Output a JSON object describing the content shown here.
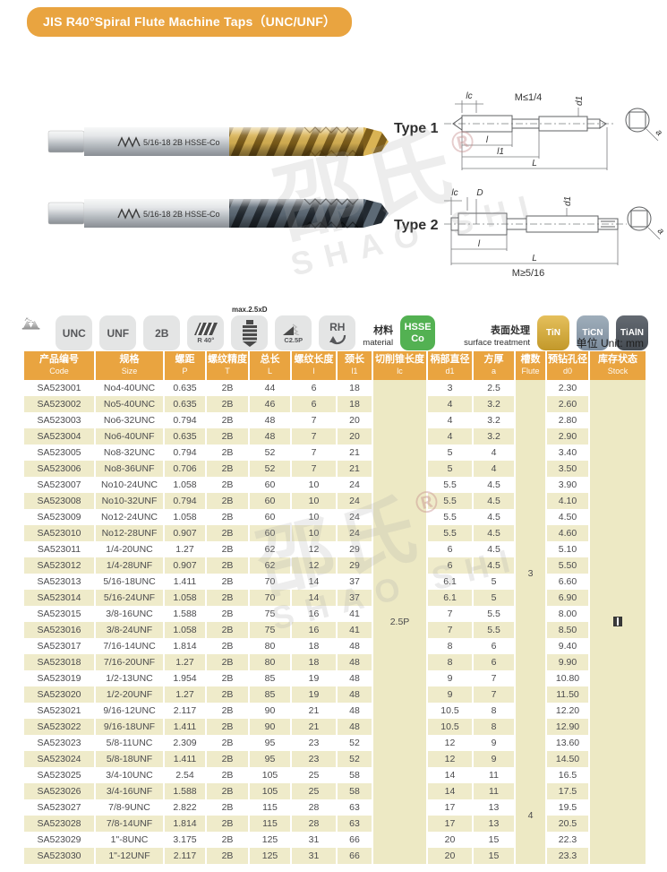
{
  "page": {
    "title": "JIS  R40°Spiral Flute Machine Taps（UNC/UNF）",
    "unit_label": "单位 Unit: mm",
    "watermark_cn": "邵氏",
    "watermark_reg": "®",
    "watermark_en": "SHAO SHI",
    "colors": {
      "accent_orange": "#E9A440",
      "row_beige": "#EFEBCA",
      "material_green": "#53B152",
      "tin_gold": "#D5A733",
      "ticn_gray": "#8D9DAC",
      "tialn_dark": "#575C63"
    }
  },
  "photos": {
    "tap_gold_marking": "5/16-18 2B HSSE-Co",
    "tap_dark_marking": "5/16-18 2B HSSE-Co",
    "brand_mark": "邵氏"
  },
  "diagrams": {
    "type1": {
      "label": "Type 1",
      "note": "M≤1/4",
      "dim_lc": "lc",
      "dim_d1": "d1",
      "dim_l": "l",
      "dim_l1": "l1",
      "dim_L": "L",
      "dim_a": "a"
    },
    "type2": {
      "label": "Type 2",
      "note": "M≥5/16",
      "dim_lc": "lc",
      "dim_D": "D",
      "dim_d1": "d1",
      "dim_l": "l",
      "dim_L": "L",
      "dim_a": "a"
    }
  },
  "spec_icons": {
    "thread_angle": "60°",
    "thread_pitch": "P",
    "badge_unc": "UNC",
    "badge_unf": "UNF",
    "badge_2b": "2B",
    "badge_spiral": "R 40°",
    "depth_note": "max.2.5xD",
    "badge_chamfer": "C2.5P",
    "badge_rotation": "RH",
    "material_label_cn": "材料",
    "material_label_en": "material",
    "material_badge_line1": "HSSE",
    "material_badge_line2": "Co",
    "surface_label_cn": "表面处理",
    "surface_label_en": "surface treatment",
    "coating_tin": "TiN",
    "coating_ticn": "TiCN",
    "coating_tialn": "TiAlN"
  },
  "table": {
    "columns": [
      {
        "cn": "产品编号",
        "en": "Code"
      },
      {
        "cn": "规格",
        "en": "Size"
      },
      {
        "cn": "螺距",
        "en": "P"
      },
      {
        "cn": "螺纹精度",
        "en": "T"
      },
      {
        "cn": "总长",
        "en": "L"
      },
      {
        "cn": "螺纹长度",
        "en": "l"
      },
      {
        "cn": "颈长",
        "en": "l1"
      },
      {
        "cn": "切削锥长度",
        "en": "lc"
      },
      {
        "cn": "柄部直径",
        "en": "d1"
      },
      {
        "cn": "方厚",
        "en": "a"
      },
      {
        "cn": "槽数",
        "en": "Flute"
      },
      {
        "cn": "预钻孔径",
        "en": "d0"
      },
      {
        "cn": "库存状态",
        "en": "Stock"
      }
    ],
    "merged": {
      "lc_value": "2.5P",
      "flute_groups": [
        {
          "value": "3",
          "span": 24
        },
        {
          "value": "4",
          "span": 6
        }
      ]
    },
    "rows": [
      [
        "SA523001",
        "No4-40UNC",
        "0.635",
        "2B",
        "44",
        "6",
        "18",
        "3",
        "2.5",
        "2.30"
      ],
      [
        "SA523002",
        "No5-40UNC",
        "0.635",
        "2B",
        "46",
        "6",
        "18",
        "4",
        "3.2",
        "2.60"
      ],
      [
        "SA523003",
        "No6-32UNC",
        "0.794",
        "2B",
        "48",
        "7",
        "20",
        "4",
        "3.2",
        "2.80"
      ],
      [
        "SA523004",
        "No6-40UNF",
        "0.635",
        "2B",
        "48",
        "7",
        "20",
        "4",
        "3.2",
        "2.90"
      ],
      [
        "SA523005",
        "No8-32UNC",
        "0.794",
        "2B",
        "52",
        "7",
        "21",
        "5",
        "4",
        "3.40"
      ],
      [
        "SA523006",
        "No8-36UNF",
        "0.706",
        "2B",
        "52",
        "7",
        "21",
        "5",
        "4",
        "3.50"
      ],
      [
        "SA523007",
        "No10-24UNC",
        "1.058",
        "2B",
        "60",
        "10",
        "24",
        "5.5",
        "4.5",
        "3.90"
      ],
      [
        "SA523008",
        "No10-32UNF",
        "0.794",
        "2B",
        "60",
        "10",
        "24",
        "5.5",
        "4.5",
        "4.10"
      ],
      [
        "SA523009",
        "No12-24UNC",
        "1.058",
        "2B",
        "60",
        "10",
        "24",
        "5.5",
        "4.5",
        "4.50"
      ],
      [
        "SA523010",
        "No12-28UNF",
        "0.907",
        "2B",
        "60",
        "10",
        "24",
        "5.5",
        "4.5",
        "4.60"
      ],
      [
        "SA523011",
        "1/4-20UNC",
        "1.27",
        "2B",
        "62",
        "12",
        "29",
        "6",
        "4.5",
        "5.10"
      ],
      [
        "SA523012",
        "1/4-28UNF",
        "0.907",
        "2B",
        "62",
        "12",
        "29",
        "6",
        "4.5",
        "5.50"
      ],
      [
        "SA523013",
        "5/16-18UNC",
        "1.411",
        "2B",
        "70",
        "14",
        "37",
        "6.1",
        "5",
        "6.60"
      ],
      [
        "SA523014",
        "5/16-24UNF",
        "1.058",
        "2B",
        "70",
        "14",
        "37",
        "6.1",
        "5",
        "6.90"
      ],
      [
        "SA523015",
        "3/8-16UNC",
        "1.588",
        "2B",
        "75",
        "16",
        "41",
        "7",
        "5.5",
        "8.00"
      ],
      [
        "SA523016",
        "3/8-24UNF",
        "1.058",
        "2B",
        "75",
        "16",
        "41",
        "7",
        "5.5",
        "8.50"
      ],
      [
        "SA523017",
        "7/16-14UNC",
        "1.814",
        "2B",
        "80",
        "18",
        "48",
        "8",
        "6",
        "9.40"
      ],
      [
        "SA523018",
        "7/16-20UNF",
        "1.27",
        "2B",
        "80",
        "18",
        "48",
        "8",
        "6",
        "9.90"
      ],
      [
        "SA523019",
        "1/2-13UNC",
        "1.954",
        "2B",
        "85",
        "19",
        "48",
        "9",
        "7",
        "10.80"
      ],
      [
        "SA523020",
        "1/2-20UNF",
        "1.27",
        "2B",
        "85",
        "19",
        "48",
        "9",
        "7",
        "11.50"
      ],
      [
        "SA523021",
        "9/16-12UNC",
        "2.117",
        "2B",
        "90",
        "21",
        "48",
        "10.5",
        "8",
        "12.20"
      ],
      [
        "SA523022",
        "9/16-18UNF",
        "1.411",
        "2B",
        "90",
        "21",
        "48",
        "10.5",
        "8",
        "12.90"
      ],
      [
        "SA523023",
        "5/8-11UNC",
        "2.309",
        "2B",
        "95",
        "23",
        "52",
        "12",
        "9",
        "13.60"
      ],
      [
        "SA523024",
        "5/8-18UNF",
        "1.411",
        "2B",
        "95",
        "23",
        "52",
        "12",
        "9",
        "14.50"
      ],
      [
        "SA523025",
        "3/4-10UNC",
        "2.54",
        "2B",
        "105",
        "25",
        "58",
        "14",
        "11",
        "16.5"
      ],
      [
        "SA523026",
        "3/4-16UNF",
        "1.588",
        "2B",
        "105",
        "25",
        "58",
        "14",
        "11",
        "17.5"
      ],
      [
        "SA523027",
        "7/8-9UNC",
        "2.822",
        "2B",
        "115",
        "28",
        "63",
        "17",
        "13",
        "19.5"
      ],
      [
        "SA523028",
        "7/8-14UNF",
        "1.814",
        "2B",
        "115",
        "28",
        "63",
        "17",
        "13",
        "20.5"
      ],
      [
        "SA523029",
        "1\"-8UNC",
        "3.175",
        "2B",
        "125",
        "31",
        "66",
        "20",
        "15",
        "22.3"
      ],
      [
        "SA523030",
        "1\"-12UNF",
        "2.117",
        "2B",
        "125",
        "31",
        "66",
        "20",
        "15",
        "23.3"
      ]
    ]
  }
}
